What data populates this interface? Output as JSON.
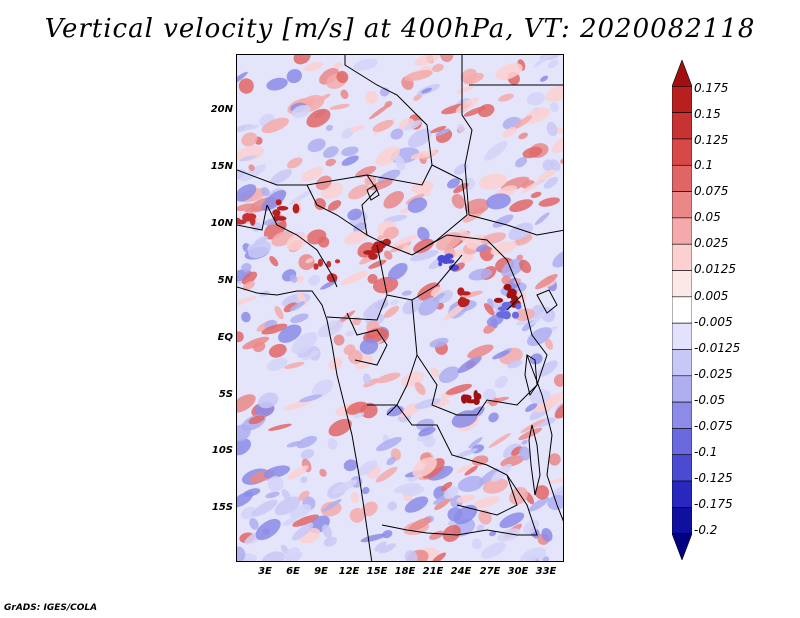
{
  "title": "Vertical velocity [m/s] at 400hPa, VT: 2020082118",
  "credit": "GrADS: IGES/COLA",
  "map": {
    "region": "Central Africa",
    "lon_range": [
      0,
      35
    ],
    "lat_range": [
      -20,
      24.5
    ],
    "lat_labels": [
      {
        "value": 20,
        "text": "20N"
      },
      {
        "value": 15,
        "text": "15N"
      },
      {
        "value": 10,
        "text": "10N"
      },
      {
        "value": 5,
        "text": "5N"
      },
      {
        "value": 0,
        "text": "EQ"
      },
      {
        "value": -5,
        "text": "5S"
      },
      {
        "value": -10,
        "text": "10S"
      },
      {
        "value": -15,
        "text": "15S"
      }
    ],
    "lon_labels": [
      {
        "value": 3,
        "text": "3E"
      },
      {
        "value": 6,
        "text": "6E"
      },
      {
        "value": 9,
        "text": "9E"
      },
      {
        "value": 12,
        "text": "12E"
      },
      {
        "value": 15,
        "text": "15E"
      },
      {
        "value": 18,
        "text": "18E"
      },
      {
        "value": 21,
        "text": "21E"
      },
      {
        "value": 24,
        "text": "24E"
      },
      {
        "value": 27,
        "text": "27E"
      },
      {
        "value": 30,
        "text": "30E"
      },
      {
        "value": 33,
        "text": "33E"
      }
    ]
  },
  "colorbar": {
    "labels": [
      "0.175",
      "0.15",
      "0.125",
      "0.1",
      "0.075",
      "0.05",
      "0.025",
      "0.0125",
      "0.005",
      "-0.005",
      "-0.0125",
      "-0.025",
      "-0.05",
      "-0.075",
      "-0.1",
      "-0.125",
      "-0.175",
      "-0.2"
    ],
    "colors": [
      "#a01010",
      "#b82020",
      "#c83232",
      "#d84848",
      "#e06666",
      "#ea8888",
      "#f4aaaa",
      "#fbd0d0",
      "#fde8e8",
      "#ffffff",
      "#e2e2fc",
      "#c8c8f6",
      "#aeaef0",
      "#8c8ce8",
      "#6a6ade",
      "#4a4ad2",
      "#2828c0",
      "#1010a0",
      "#000080"
    ]
  }
}
